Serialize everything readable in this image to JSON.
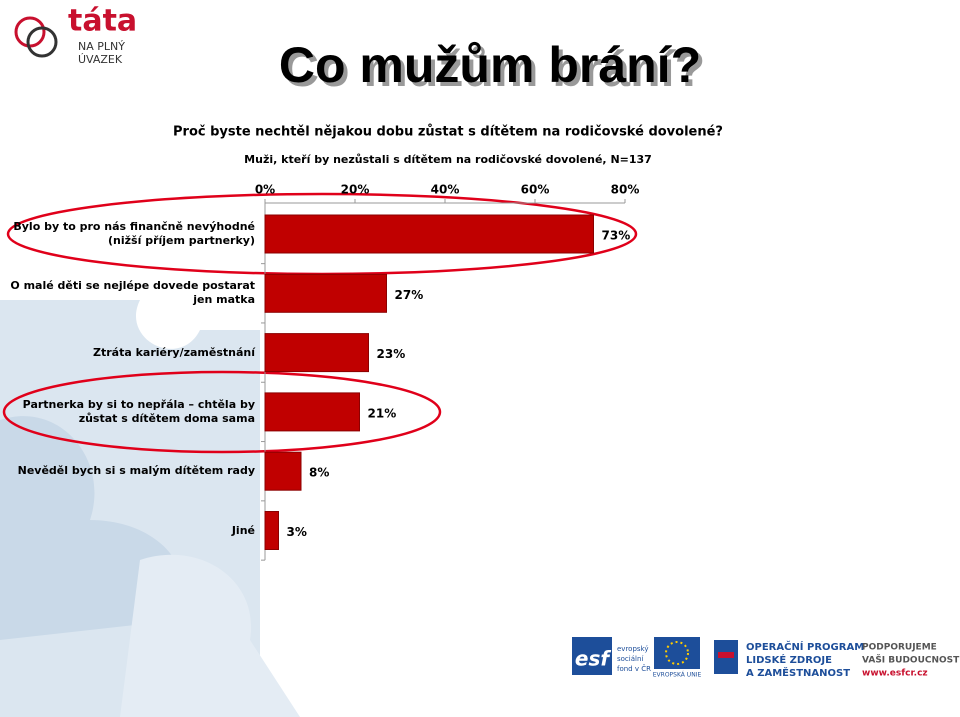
{
  "logo": {
    "name": "táta",
    "line1": "NA PLNÝ",
    "line2": "ÚVAZEK"
  },
  "slide_title": "Co mužům brání?",
  "chart_data": {
    "type": "bar",
    "orientation": "horizontal",
    "title": "Proč byste nechtěl nějakou dobu zůstat s dítětem na rodičovské dovolené?",
    "subtitle": "Muži, kteří by nezůstali s dítětem na rodičovské dovolené, N=137",
    "categories": [
      "Bylo by to pro nás finančně nevýhodné (nižší příjem partnerky)",
      "O malé děti se nejlépe dovede postarat jen matka",
      "Ztráta kariéry/zaměstnání",
      "Partnerka by si to nepřála – chtěla by zůstat s dítětem doma sama",
      "Nevěděl bych si s malým dítětem rady",
      "Jiné"
    ],
    "values": [
      73,
      27,
      23,
      21,
      8,
      3
    ],
    "value_labels": [
      "73%",
      "27%",
      "23%",
      "21%",
      "8%",
      "3%"
    ],
    "color": "#c00000",
    "xlim": [
      0,
      80
    ],
    "xticks": [
      {
        "value": 0,
        "label": "0%"
      },
      {
        "value": 20,
        "label": "20%"
      },
      {
        "value": 40,
        "label": "40%"
      },
      {
        "value": 60,
        "label": "60%"
      },
      {
        "value": 80,
        "label": "80%"
      }
    ]
  },
  "footer": {
    "esf": "esf",
    "esf_text1": "evropský",
    "esf_text2": "sociální",
    "esf_text3": "fond v ČR",
    "eu": "EVROPSKÁ UNIE",
    "op1": "OPERAČNÍ PROGRAM",
    "op2": "LIDSKÉ ZDROJE",
    "op3": "A ZAMĚSTNANOST",
    "slogan1": "PODPORUJEME",
    "slogan2": "VAŠI BUDOUCNOST",
    "url": "www.esfcr.cz"
  }
}
